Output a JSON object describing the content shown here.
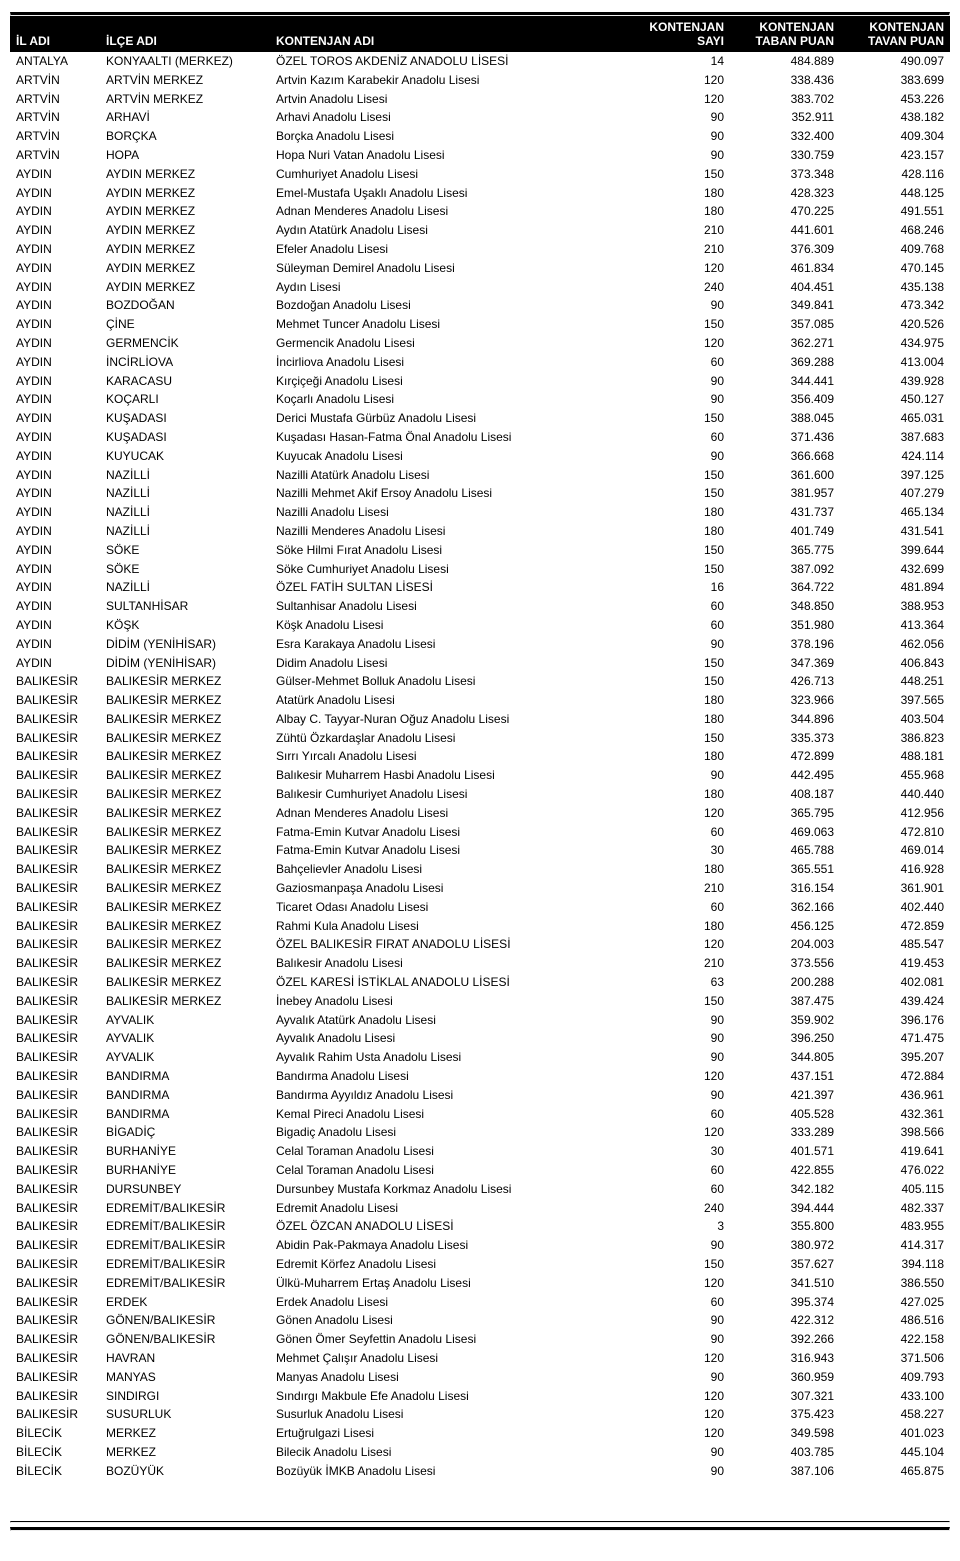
{
  "columns": {
    "il": {
      "label_line1": "İL ADI",
      "label_line2": ""
    },
    "ilce": {
      "label_line1": "İLÇE ADI",
      "label_line2": ""
    },
    "kont": {
      "label_line1": "KONTENJAN ADI",
      "label_line2": ""
    },
    "sayi": {
      "label_line1": "KONTENJAN",
      "label_line2": "SAYI"
    },
    "taban": {
      "label_line1": "KONTENJAN",
      "label_line2": "TABAN PUAN"
    },
    "tavan": {
      "label_line1": "KONTENJAN",
      "label_line2": "TAVAN PUAN"
    }
  },
  "style": {
    "background": "#ffffff",
    "header_bg": "#000000",
    "header_fg": "#ffffff",
    "body_fg": "#000000",
    "font_family": "Arial, Helvetica, sans-serif",
    "header_font_size_pt": 9,
    "body_font_size_pt": 9
  },
  "rows": [
    [
      "ANTALYA",
      "KONYAALTI (MERKEZ)",
      "ÖZEL TOROS AKDENİZ ANADOLU LİSESİ",
      "14",
      "484.889",
      "490.097"
    ],
    [
      "ARTVİN",
      "ARTVİN MERKEZ",
      "Artvin Kazım Karabekir Anadolu Lisesi",
      "120",
      "338.436",
      "383.699"
    ],
    [
      "ARTVİN",
      "ARTVİN MERKEZ",
      "Artvin Anadolu Lisesi",
      "120",
      "383.702",
      "453.226"
    ],
    [
      "ARTVİN",
      "ARHAVİ",
      "Arhavi Anadolu Lisesi",
      "90",
      "352.911",
      "438.182"
    ],
    [
      "ARTVİN",
      "BORÇKA",
      "Borçka Anadolu Lisesi",
      "90",
      "332.400",
      "409.304"
    ],
    [
      "ARTVİN",
      "HOPA",
      "Hopa Nuri Vatan Anadolu Lisesi",
      "90",
      "330.759",
      "423.157"
    ],
    [
      "AYDIN",
      "AYDIN MERKEZ",
      "Cumhuriyet Anadolu Lisesi",
      "150",
      "373.348",
      "428.116"
    ],
    [
      "AYDIN",
      "AYDIN MERKEZ",
      "Emel-Mustafa Uşaklı Anadolu Lisesi",
      "180",
      "428.323",
      "448.125"
    ],
    [
      "AYDIN",
      "AYDIN MERKEZ",
      "Adnan Menderes Anadolu Lisesi",
      "180",
      "470.225",
      "491.551"
    ],
    [
      "AYDIN",
      "AYDIN MERKEZ",
      "Aydın Atatürk Anadolu Lisesi",
      "210",
      "441.601",
      "468.246"
    ],
    [
      "AYDIN",
      "AYDIN MERKEZ",
      "Efeler Anadolu Lisesi",
      "210",
      "376.309",
      "409.768"
    ],
    [
      "AYDIN",
      "AYDIN MERKEZ",
      "Süleyman Demirel Anadolu Lisesi",
      "120",
      "461.834",
      "470.145"
    ],
    [
      "AYDIN",
      "AYDIN MERKEZ",
      "Aydın Lisesi",
      "240",
      "404.451",
      "435.138"
    ],
    [
      "AYDIN",
      "BOZDOĞAN",
      "Bozdoğan Anadolu Lisesi",
      "90",
      "349.841",
      "473.342"
    ],
    [
      "AYDIN",
      "ÇİNE",
      "Mehmet Tuncer Anadolu Lisesi",
      "150",
      "357.085",
      "420.526"
    ],
    [
      "AYDIN",
      "GERMENCİK",
      "Germencik Anadolu Lisesi",
      "120",
      "362.271",
      "434.975"
    ],
    [
      "AYDIN",
      "İNCİRLİOVA",
      "İncirliova Anadolu Lisesi",
      "60",
      "369.288",
      "413.004"
    ],
    [
      "AYDIN",
      "KARACASU",
      "Kırçiçeği Anadolu Lisesi",
      "90",
      "344.441",
      "439.928"
    ],
    [
      "AYDIN",
      "KOÇARLI",
      "Koçarlı Anadolu Lisesi",
      "90",
      "356.409",
      "450.127"
    ],
    [
      "AYDIN",
      "KUŞADASI",
      "Derici Mustafa Gürbüz Anadolu Lisesi",
      "150",
      "388.045",
      "465.031"
    ],
    [
      "AYDIN",
      "KUŞADASI",
      "Kuşadası Hasan-Fatma Önal Anadolu Lisesi",
      "60",
      "371.436",
      "387.683"
    ],
    [
      "AYDIN",
      "KUYUCAK",
      "Kuyucak Anadolu Lisesi",
      "90",
      "366.668",
      "424.114"
    ],
    [
      "AYDIN",
      "NAZİLLİ",
      "Nazilli Atatürk Anadolu Lisesi",
      "150",
      "361.600",
      "397.125"
    ],
    [
      "AYDIN",
      "NAZİLLİ",
      "Nazilli Mehmet Akif Ersoy Anadolu Lisesi",
      "150",
      "381.957",
      "407.279"
    ],
    [
      "AYDIN",
      "NAZİLLİ",
      "Nazilli Anadolu Lisesi",
      "180",
      "431.737",
      "465.134"
    ],
    [
      "AYDIN",
      "NAZİLLİ",
      "Nazilli Menderes Anadolu Lisesi",
      "180",
      "401.749",
      "431.541"
    ],
    [
      "AYDIN",
      "SÖKE",
      "Söke Hilmi Fırat Anadolu Lisesi",
      "150",
      "365.775",
      "399.644"
    ],
    [
      "AYDIN",
      "SÖKE",
      "Söke Cumhuriyet Anadolu Lisesi",
      "150",
      "387.092",
      "432.699"
    ],
    [
      "AYDIN",
      "NAZİLLİ",
      "ÖZEL FATİH SULTAN LİSESİ",
      "16",
      "364.722",
      "481.894"
    ],
    [
      "AYDIN",
      "SULTANHİSAR",
      "Sultanhisar Anadolu Lisesi",
      "60",
      "348.850",
      "388.953"
    ],
    [
      "AYDIN",
      "KÖŞK",
      "Köşk Anadolu Lisesi",
      "60",
      "351.980",
      "413.364"
    ],
    [
      "AYDIN",
      "DİDİM (YENİHİSAR)",
      "Esra Karakaya Anadolu Lisesi",
      "90",
      "378.196",
      "462.056"
    ],
    [
      "AYDIN",
      "DİDİM (YENİHİSAR)",
      "Didim Anadolu Lisesi",
      "150",
      "347.369",
      "406.843"
    ],
    [
      "BALIKESİR",
      "BALIKESİR MERKEZ",
      "Gülser-Mehmet Bolluk Anadolu Lisesi",
      "150",
      "426.713",
      "448.251"
    ],
    [
      "BALIKESİR",
      "BALIKESİR MERKEZ",
      "Atatürk Anadolu Lisesi",
      "180",
      "323.966",
      "397.565"
    ],
    [
      "BALIKESİR",
      "BALIKESİR MERKEZ",
      "Albay C. Tayyar-Nuran Oğuz Anadolu Lisesi",
      "180",
      "344.896",
      "403.504"
    ],
    [
      "BALIKESİR",
      "BALIKESİR MERKEZ",
      "Zühtü Özkardaşlar Anadolu Lisesi",
      "150",
      "335.373",
      "386.823"
    ],
    [
      "BALIKESİR",
      "BALIKESİR MERKEZ",
      "Sırrı Yırcalı Anadolu Lisesi",
      "180",
      "472.899",
      "488.181"
    ],
    [
      "BALIKESİR",
      "BALIKESİR MERKEZ",
      "Balıkesir Muharrem Hasbi Anadolu Lisesi",
      "90",
      "442.495",
      "455.968"
    ],
    [
      "BALIKESİR",
      "BALIKESİR MERKEZ",
      "Balıkesir Cumhuriyet Anadolu Lisesi",
      "180",
      "408.187",
      "440.440"
    ],
    [
      "BALIKESİR",
      "BALIKESİR MERKEZ",
      "Adnan Menderes Anadolu Lisesi",
      "120",
      "365.795",
      "412.956"
    ],
    [
      "BALIKESİR",
      "BALIKESİR MERKEZ",
      "Fatma-Emin Kutvar Anadolu Lisesi",
      "60",
      "469.063",
      "472.810"
    ],
    [
      "BALIKESİR",
      "BALIKESİR MERKEZ",
      "Fatma-Emin Kutvar Anadolu Lisesi",
      "30",
      "465.788",
      "469.014"
    ],
    [
      "BALIKESİR",
      "BALIKESİR MERKEZ",
      "Bahçelievler Anadolu Lisesi",
      "180",
      "365.551",
      "416.928"
    ],
    [
      "BALIKESİR",
      "BALIKESİR MERKEZ",
      "Gaziosmanpaşa Anadolu Lisesi",
      "210",
      "316.154",
      "361.901"
    ],
    [
      "BALIKESİR",
      "BALIKESİR MERKEZ",
      "Ticaret Odası Anadolu Lisesi",
      "60",
      "362.166",
      "402.440"
    ],
    [
      "BALIKESİR",
      "BALIKESİR MERKEZ",
      "Rahmi Kula Anadolu Lisesi",
      "180",
      "456.125",
      "472.859"
    ],
    [
      "BALIKESİR",
      "BALIKESİR MERKEZ",
      "ÖZEL BALIKESİR FIRAT ANADOLU LİSESİ",
      "120",
      "204.003",
      "485.547"
    ],
    [
      "BALIKESİR",
      "BALIKESİR MERKEZ",
      "Balıkesir Anadolu Lisesi",
      "210",
      "373.556",
      "419.453"
    ],
    [
      "BALIKESİR",
      "BALIKESİR MERKEZ",
      "ÖZEL KARESİ İSTİKLAL ANADOLU LİSESİ",
      "63",
      "200.288",
      "402.081"
    ],
    [
      "BALIKESİR",
      "BALIKESİR MERKEZ",
      "İnebey Anadolu Lisesi",
      "150",
      "387.475",
      "439.424"
    ],
    [
      "BALIKESİR",
      "AYVALIK",
      "Ayvalık Atatürk Anadolu Lisesi",
      "90",
      "359.902",
      "396.176"
    ],
    [
      "BALIKESİR",
      "AYVALIK",
      "Ayvalık Anadolu Lisesi",
      "90",
      "396.250",
      "471.475"
    ],
    [
      "BALIKESİR",
      "AYVALIK",
      "Ayvalık Rahim Usta Anadolu Lisesi",
      "90",
      "344.805",
      "395.207"
    ],
    [
      "BALIKESİR",
      "BANDIRMA",
      "Bandırma Anadolu Lisesi",
      "120",
      "437.151",
      "472.884"
    ],
    [
      "BALIKESİR",
      "BANDIRMA",
      "Bandırma Ayyıldız Anadolu Lisesi",
      "90",
      "421.397",
      "436.961"
    ],
    [
      "BALIKESİR",
      "BANDIRMA",
      "Kemal Pireci Anadolu Lisesi",
      "60",
      "405.528",
      "432.361"
    ],
    [
      "BALIKESİR",
      "BİGADİÇ",
      "Bigadiç Anadolu Lisesi",
      "120",
      "333.289",
      "398.566"
    ],
    [
      "BALIKESİR",
      "BURHANİYE",
      "Celal Toraman Anadolu Lisesi",
      "30",
      "401.571",
      "419.641"
    ],
    [
      "BALIKESİR",
      "BURHANİYE",
      "Celal Toraman Anadolu Lisesi",
      "60",
      "422.855",
      "476.022"
    ],
    [
      "BALIKESİR",
      "DURSUNBEY",
      "Dursunbey Mustafa Korkmaz Anadolu Lisesi",
      "60",
      "342.182",
      "405.115"
    ],
    [
      "BALIKESİR",
      "EDREMİT/BALIKESİR",
      "Edremit Anadolu Lisesi",
      "240",
      "394.444",
      "482.337"
    ],
    [
      "BALIKESİR",
      "EDREMİT/BALIKESİR",
      "ÖZEL ÖZCAN ANADOLU LİSESİ",
      "3",
      "355.800",
      "483.955"
    ],
    [
      "BALIKESİR",
      "EDREMİT/BALIKESİR",
      "Abidin Pak-Pakmaya Anadolu Lisesi",
      "90",
      "380.972",
      "414.317"
    ],
    [
      "BALIKESİR",
      "EDREMİT/BALIKESİR",
      "Edremit Körfez Anadolu Lisesi",
      "150",
      "357.627",
      "394.118"
    ],
    [
      "BALIKESİR",
      "EDREMİT/BALIKESİR",
      "Ülkü-Muharrem Ertaş Anadolu Lisesi",
      "120",
      "341.510",
      "386.550"
    ],
    [
      "BALIKESİR",
      "ERDEK",
      "Erdek Anadolu Lisesi",
      "60",
      "395.374",
      "427.025"
    ],
    [
      "BALIKESİR",
      "GÖNEN/BALIKESİR",
      "Gönen Anadolu Lisesi",
      "90",
      "422.312",
      "486.516"
    ],
    [
      "BALIKESİR",
      "GÖNEN/BALIKESİR",
      "Gönen Ömer Seyfettin Anadolu Lisesi",
      "90",
      "392.266",
      "422.158"
    ],
    [
      "BALIKESİR",
      "HAVRAN",
      "Mehmet Çalışır Anadolu Lisesi",
      "120",
      "316.943",
      "371.506"
    ],
    [
      "BALIKESİR",
      "MANYAS",
      "Manyas Anadolu Lisesi",
      "90",
      "360.959",
      "409.793"
    ],
    [
      "BALIKESİR",
      "SINDIRGI",
      "Sındırgı Makbule Efe Anadolu Lisesi",
      "120",
      "307.321",
      "433.100"
    ],
    [
      "BALIKESİR",
      "SUSURLUK",
      "Susurluk Anadolu Lisesi",
      "120",
      "375.423",
      "458.227"
    ],
    [
      "BİLECİK",
      "MERKEZ",
      "Ertuğrulgazi  Lisesi",
      "120",
      "349.598",
      "401.023"
    ],
    [
      "BİLECİK",
      "MERKEZ",
      "Bilecik Anadolu Lisesi",
      "90",
      "403.785",
      "445.104"
    ],
    [
      "BİLECİK",
      "BOZÜYÜK",
      "Bozüyük İMKB Anadolu Lisesi",
      "90",
      "387.106",
      "465.875"
    ]
  ]
}
